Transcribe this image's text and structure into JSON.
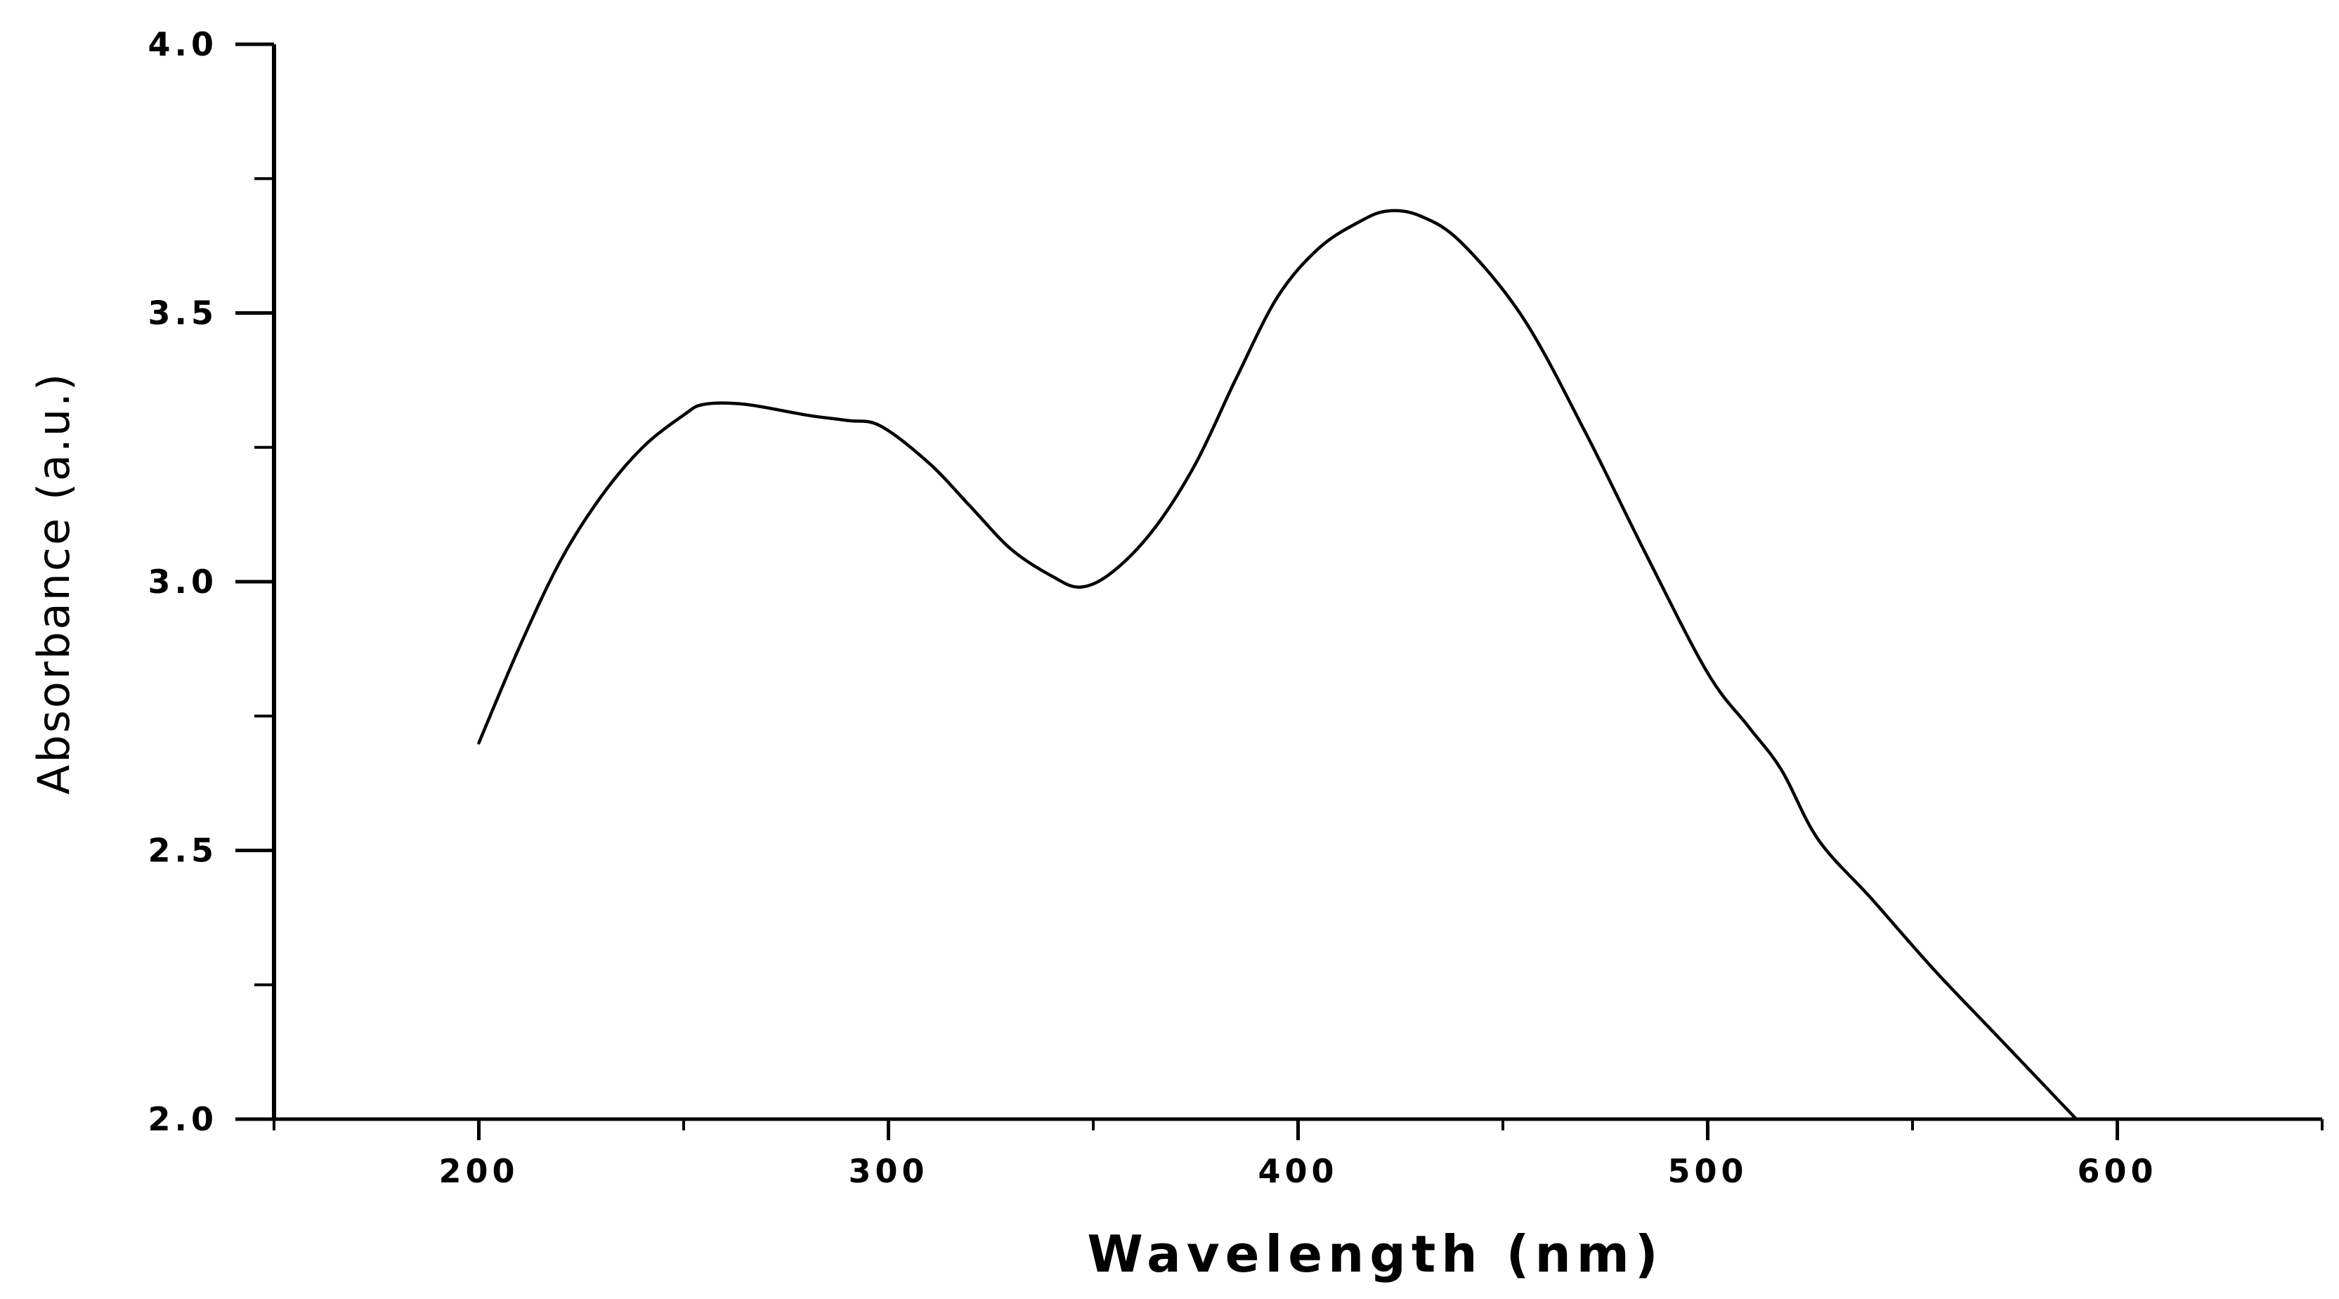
{
  "chart_data": {
    "type": "line",
    "title": "",
    "xlabel": "Wavelength (nm)",
    "ylabel": "Absorbance (a.u.)",
    "xlim": [
      150,
      650
    ],
    "ylim": [
      2.0,
      4.0
    ],
    "x_ticks": [
      200,
      300,
      400,
      500,
      600
    ],
    "x_tick_labels": [
      "200",
      "300",
      "400",
      "500",
      "600"
    ],
    "x_minor_ticks": [
      150,
      250,
      350,
      450,
      550,
      650
    ],
    "y_ticks": [
      2.0,
      2.5,
      3.0,
      3.5,
      4.0
    ],
    "y_tick_labels": [
      "2.0",
      "2.5",
      "3.0",
      "3.5",
      "4.0"
    ],
    "y_minor_ticks": [
      2.25,
      2.75,
      3.25,
      3.75
    ],
    "grid": false,
    "legend": "none",
    "line_color": "#000000",
    "series": [
      {
        "name": "Absorbance",
        "x": [
          200,
          210,
          220,
          230,
          240,
          250,
          255,
          265,
          280,
          290,
          298,
          310,
          320,
          330,
          340,
          347,
          355,
          365,
          375,
          385,
          395,
          405,
          415,
          422,
          430,
          440,
          455,
          470,
          485,
          500,
          510,
          518,
          527,
          540,
          555,
          570,
          590
        ],
        "y": [
          2.7,
          2.88,
          3.04,
          3.16,
          3.25,
          3.31,
          3.33,
          3.33,
          3.31,
          3.3,
          3.29,
          3.22,
          3.14,
          3.06,
          3.01,
          2.99,
          3.02,
          3.1,
          3.22,
          3.38,
          3.53,
          3.62,
          3.67,
          3.69,
          3.68,
          3.63,
          3.49,
          3.28,
          3.05,
          2.83,
          2.73,
          2.65,
          2.52,
          2.41,
          2.28,
          2.16,
          2.0
        ]
      }
    ]
  }
}
